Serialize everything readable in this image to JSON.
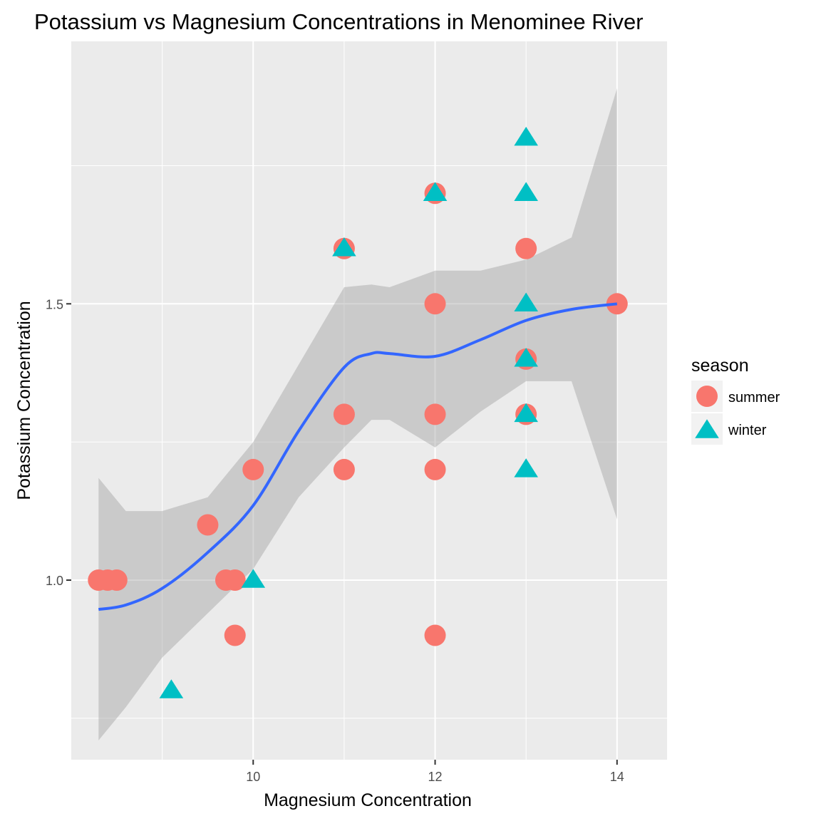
{
  "chart_data": {
    "type": "scatter",
    "title": "Potassium vs Magnesium Concentrations in Menominee River",
    "xlabel": "Magnesium Concentration",
    "ylabel": "Potassium Concentration",
    "xlim": [
      8.0,
      14.55
    ],
    "ylim": [
      0.675,
      1.975
    ],
    "x_ticks": [
      10,
      12,
      14
    ],
    "x_minor": [
      9,
      11,
      13
    ],
    "y_ticks": [
      1.0,
      1.5
    ],
    "y_tick_labels": [
      "1.0",
      "1.5"
    ],
    "y_minor": [
      0.75,
      1.25,
      1.75
    ],
    "grid": true,
    "legend": {
      "title": "season",
      "position": "right"
    },
    "colors": {
      "summer": "#F8766D",
      "winter": "#00BFC4",
      "smooth": "#3366FF",
      "band": "#999999",
      "panel": "#EBEBEB",
      "grid": "#FFFFFF"
    },
    "series": [
      {
        "name": "summer",
        "marker": "circle",
        "points": [
          [
            8.3,
            1.0
          ],
          [
            8.4,
            1.0
          ],
          [
            8.5,
            1.0
          ],
          [
            9.5,
            1.1
          ],
          [
            9.7,
            1.0
          ],
          [
            9.8,
            1.0
          ],
          [
            9.8,
            0.9
          ],
          [
            10.0,
            1.2
          ],
          [
            11.0,
            1.6
          ],
          [
            11.0,
            1.3
          ],
          [
            11.0,
            1.2
          ],
          [
            12.0,
            1.7
          ],
          [
            12.0,
            1.5
          ],
          [
            12.0,
            1.3
          ],
          [
            12.0,
            1.2
          ],
          [
            12.0,
            0.9
          ],
          [
            13.0,
            1.6
          ],
          [
            13.0,
            1.4
          ],
          [
            13.0,
            1.3
          ],
          [
            14.0,
            1.5
          ]
        ]
      },
      {
        "name": "winter",
        "marker": "triangle",
        "points": [
          [
            9.1,
            0.8
          ],
          [
            10.0,
            1.0
          ],
          [
            11.0,
            1.6
          ],
          [
            12.0,
            1.7
          ],
          [
            13.0,
            1.8
          ],
          [
            13.0,
            1.7
          ],
          [
            13.0,
            1.5
          ],
          [
            13.0,
            1.4
          ],
          [
            13.0,
            1.3
          ],
          [
            13.0,
            1.2
          ]
        ]
      }
    ],
    "smooth": {
      "x": [
        8.3,
        8.6,
        9.0,
        9.5,
        10.0,
        10.5,
        11.0,
        11.3,
        11.5,
        12.0,
        12.5,
        13.0,
        13.5,
        14.0
      ],
      "y": [
        0.947,
        0.955,
        0.985,
        1.05,
        1.135,
        1.27,
        1.385,
        1.41,
        1.41,
        1.405,
        1.435,
        1.47,
        1.49,
        1.5
      ],
      "lower": [
        0.71,
        0.77,
        0.86,
        0.94,
        1.02,
        1.15,
        1.24,
        1.29,
        1.29,
        1.24,
        1.305,
        1.36,
        1.36,
        1.11
      ],
      "upper": [
        1.185,
        1.125,
        1.125,
        1.15,
        1.25,
        1.39,
        1.53,
        1.535,
        1.53,
        1.56,
        1.56,
        1.58,
        1.62,
        1.89
      ]
    }
  }
}
